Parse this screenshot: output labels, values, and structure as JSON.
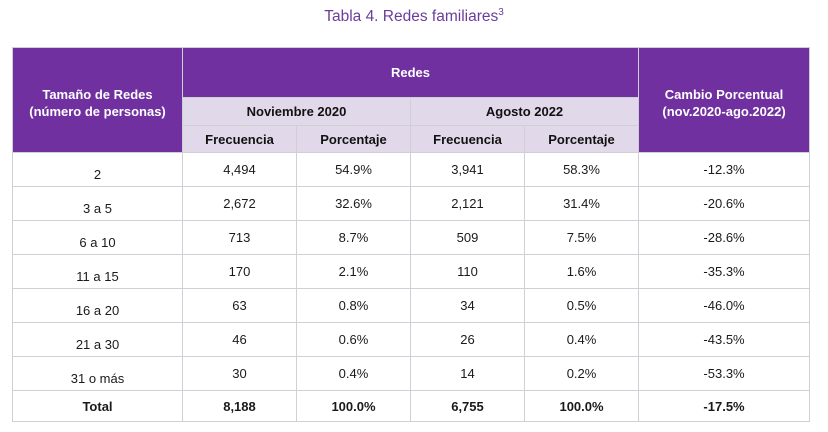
{
  "caption": {
    "text": "Tabla 4. Redes familiares",
    "superscript": "3"
  },
  "header": {
    "size_col_line1": "Tamaño de Redes",
    "size_col_line2": "(número de personas)",
    "group": "Redes",
    "period1": "Noviembre 2020",
    "period2": "Agosto 2022",
    "freq": "Frecuencia",
    "pct": "Porcentaje",
    "change_line1": "Cambio Porcentual",
    "change_line2": "(nov.2020-ago.2022)"
  },
  "rows": [
    {
      "size": "2",
      "f2020": "4,494",
      "p2020": "54.9%",
      "f2022": "3,941",
      "p2022": "58.3%",
      "change": "-12.3%"
    },
    {
      "size": "3 a 5",
      "f2020": "2,672",
      "p2020": "32.6%",
      "f2022": "2,121",
      "p2022": "31.4%",
      "change": "-20.6%"
    },
    {
      "size": "6 a 10",
      "f2020": "713",
      "p2020": "8.7%",
      "f2022": "509",
      "p2022": "7.5%",
      "change": "-28.6%"
    },
    {
      "size": "11 a 15",
      "f2020": "170",
      "p2020": "2.1%",
      "f2022": "110",
      "p2022": "1.6%",
      "change": "-35.3%"
    },
    {
      "size": "16 a 20",
      "f2020": "63",
      "p2020": "0.8%",
      "f2022": "34",
      "p2022": "0.5%",
      "change": "-46.0%"
    },
    {
      "size": "21 a 30",
      "f2020": "46",
      "p2020": "0.6%",
      "f2022": "26",
      "p2022": "0.4%",
      "change": "-43.5%"
    },
    {
      "size": "31 o más",
      "f2020": "30",
      "p2020": "0.4%",
      "f2022": "14",
      "p2022": "0.2%",
      "change": "-53.3%"
    }
  ],
  "total": {
    "label": "Total",
    "f2020": "8,188",
    "p2020": "100.0%",
    "f2022": "6,755",
    "p2022": "100.0%",
    "change": "-17.5%"
  },
  "colors": {
    "header_purple": "#7030a0",
    "header_light": "#e1d9ea",
    "caption": "#6a3d9a"
  }
}
